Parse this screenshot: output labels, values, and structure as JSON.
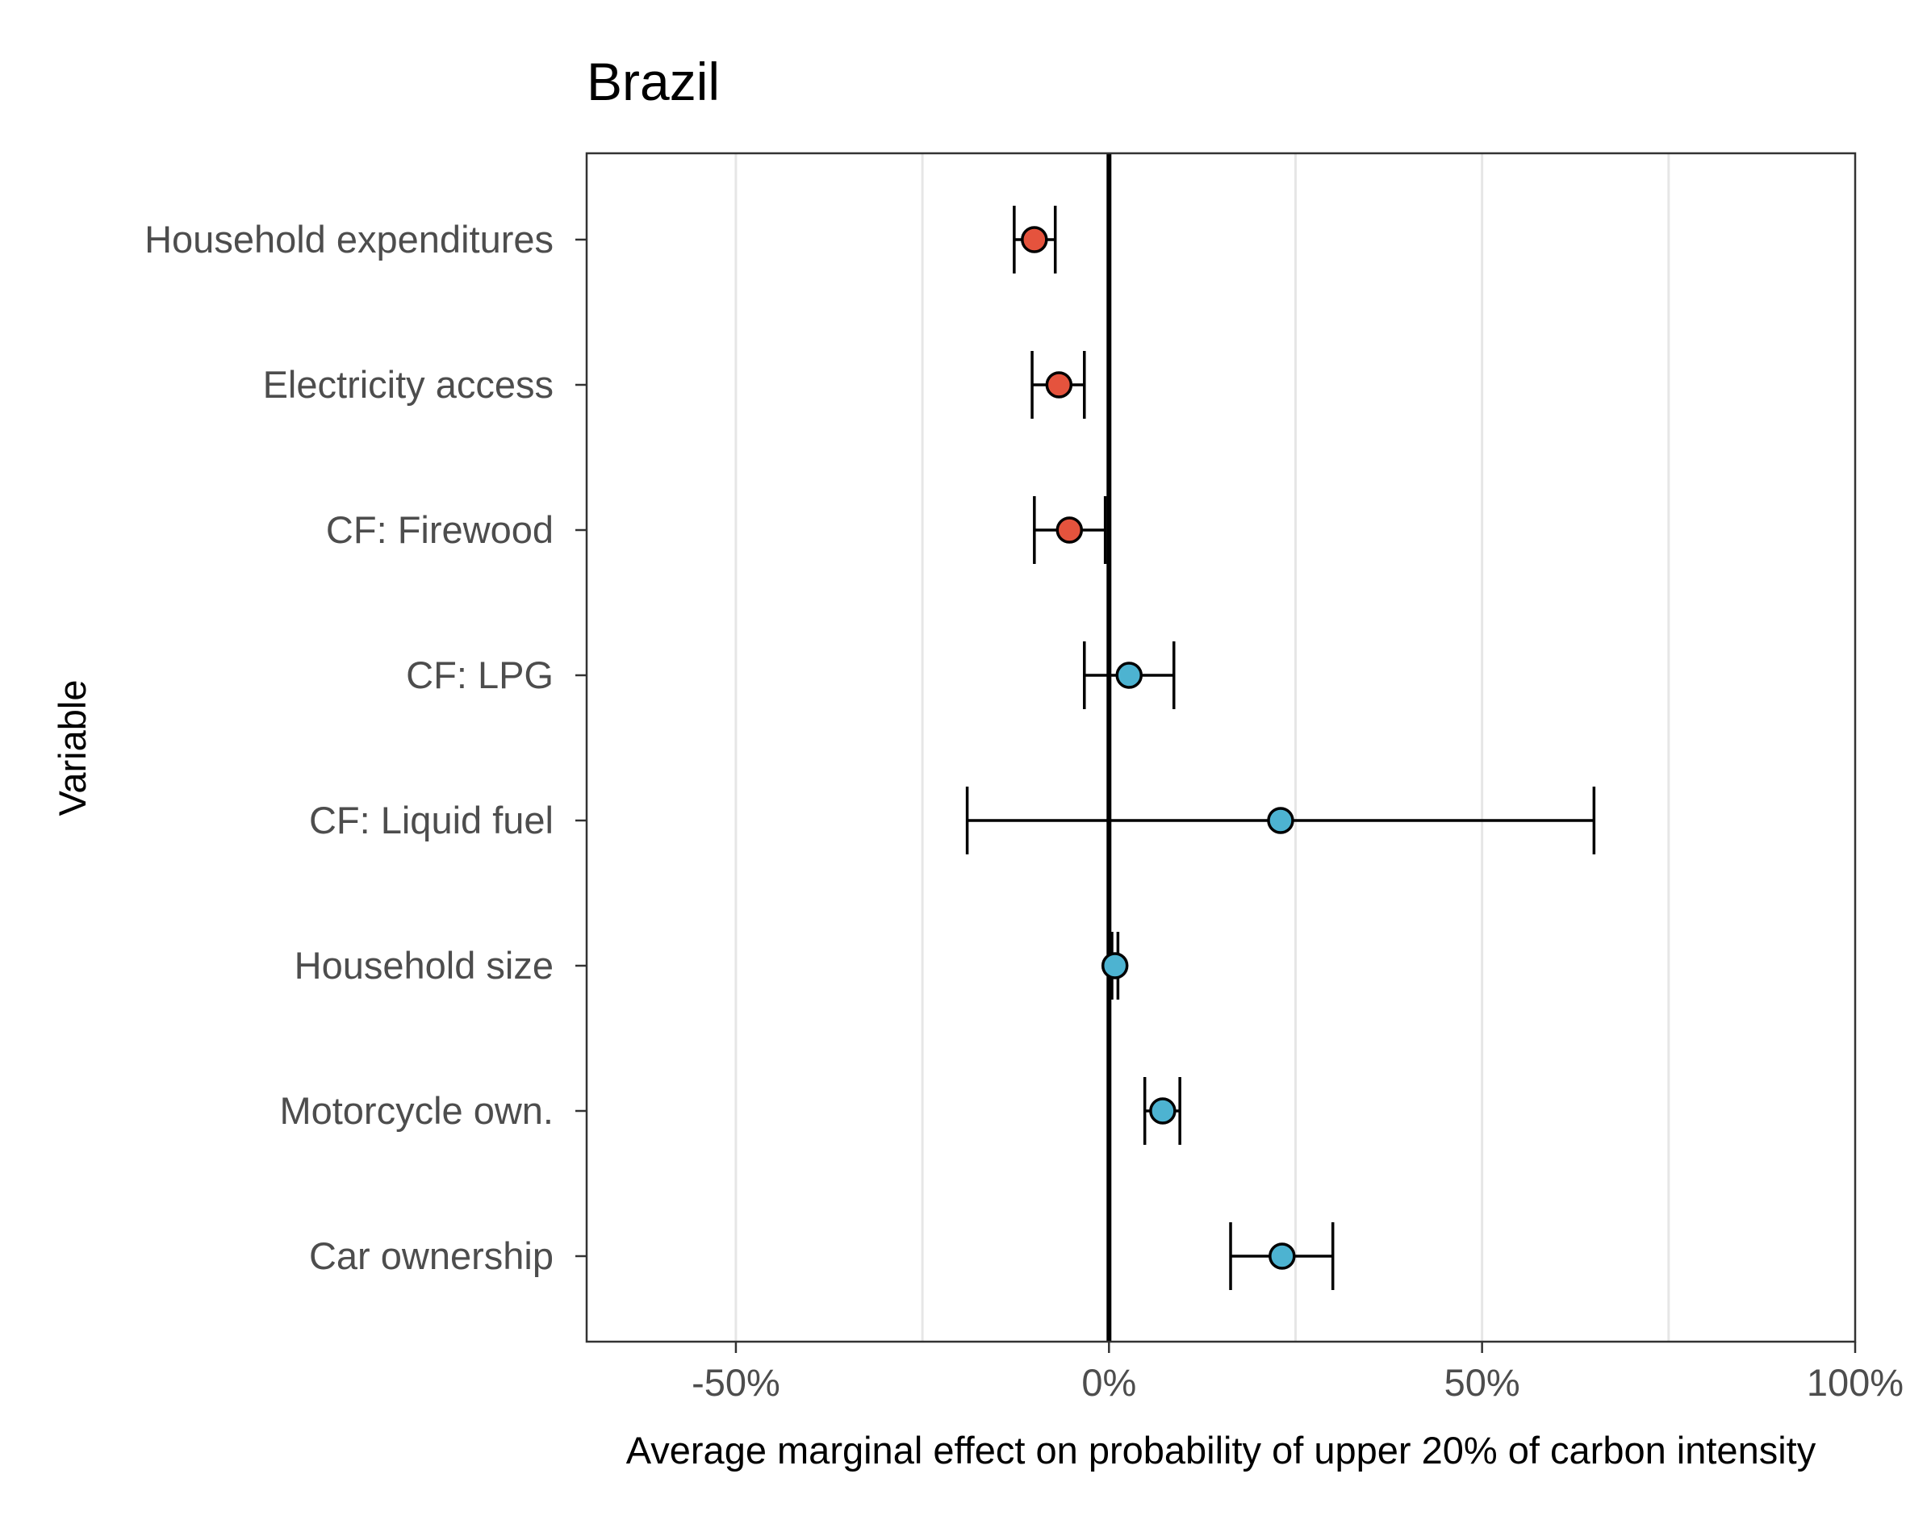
{
  "chart_data": {
    "type": "scatter",
    "title": "Brazil",
    "xlabel": "Average marginal effect on probability of upper 20% of carbon intensity",
    "ylabel": "Variable",
    "xlim": [
      -0.7,
      1.0
    ],
    "x_ticks": [
      -0.5,
      0,
      0.5,
      1.0
    ],
    "x_tick_labels": [
      "-50%",
      "0%",
      "50%",
      "100%"
    ],
    "x_minor_gridlines": [
      -0.25,
      0.25,
      0.75
    ],
    "grid": "vertical",
    "reference_line": 0,
    "colors": {
      "negative": "#E5533D",
      "positive": "#4DB3D1"
    },
    "categories": [
      "Household expenditures",
      "Electricity access",
      "CF: Firewood",
      "CF: LPG",
      "CF: Liquid fuel",
      "Household size",
      "Motorcycle own.",
      "Car ownership"
    ],
    "estimates": [
      -0.1,
      -0.067,
      -0.053,
      0.027,
      0.23,
      0.008,
      0.072,
      0.232
    ],
    "ci_low": [
      -0.127,
      -0.103,
      -0.1,
      -0.033,
      -0.19,
      0.004,
      0.048,
      0.163
    ],
    "ci_high": [
      -0.072,
      -0.033,
      -0.005,
      0.087,
      0.65,
      0.012,
      0.095,
      0.3
    ]
  }
}
